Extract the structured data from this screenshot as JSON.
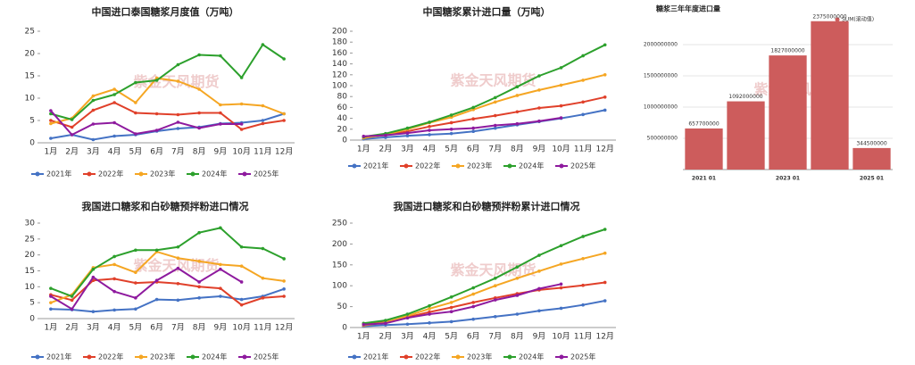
{
  "chart_data": [
    {
      "type": "line",
      "title": "中国进口泰国糖浆月度值（万吨）",
      "watermark": "紫金天风期货",
      "categories": [
        "1月",
        "2月",
        "3月",
        "4月",
        "5月",
        "6月",
        "7月",
        "8月",
        "9月",
        "10月",
        "11月",
        "12月"
      ],
      "ylim": [
        0,
        25
      ],
      "yticks": [
        0,
        5,
        10,
        15,
        20,
        25
      ],
      "grid": false,
      "series": [
        {
          "name": "2021年",
          "color": "#4472c4",
          "values": [
            1.0,
            1.8,
            0.7,
            1.5,
            1.8,
            2.6,
            3.2,
            3.5,
            4.3,
            4.5,
            5.0,
            6.5
          ]
        },
        {
          "name": "2022年",
          "color": "#e0402a",
          "values": [
            5.0,
            3.5,
            7.3,
            9.0,
            6.7,
            6.5,
            6.3,
            6.7,
            6.7,
            3.0,
            4.3,
            5.0
          ]
        },
        {
          "name": "2023年",
          "color": "#f5a623",
          "values": [
            4.3,
            5.5,
            10.5,
            12.0,
            9.0,
            14.5,
            13.8,
            12.0,
            8.5,
            8.7,
            8.3,
            6.5
          ]
        },
        {
          "name": "2024年",
          "color": "#2ca02c",
          "values": [
            6.5,
            5.2,
            9.5,
            10.8,
            13.5,
            14.0,
            17.5,
            19.7,
            19.5,
            14.6,
            22.0,
            18.8
          ]
        },
        {
          "name": "2025年",
          "color": "#8e1a9e",
          "values": [
            7.2,
            1.8,
            4.2,
            4.5,
            2.0,
            2.8,
            4.6,
            3.3,
            4.2,
            4.2,
            null,
            null
          ]
        }
      ]
    },
    {
      "type": "line",
      "title": "中国糖浆累计进口量（万吨）",
      "watermark": "紫金天风期货",
      "categories": [
        "1月",
        "2月",
        "3月",
        "4月",
        "5月",
        "6月",
        "7月",
        "8月",
        "9月",
        "10月",
        "11月",
        "12月"
      ],
      "ylim": [
        0,
        200
      ],
      "yticks": [
        0,
        20,
        40,
        60,
        80,
        100,
        120,
        140,
        160,
        180,
        200
      ],
      "grid": false,
      "series": [
        {
          "name": "2021年",
          "color": "#4472c4",
          "values": [
            2,
            5,
            8,
            10,
            12,
            16,
            22,
            28,
            34,
            40,
            47,
            55
          ]
        },
        {
          "name": "2022年",
          "color": "#e0402a",
          "values": [
            5,
            9,
            16,
            25,
            32,
            39,
            45,
            52,
            59,
            63,
            70,
            79
          ]
        },
        {
          "name": "2023年",
          "color": "#f5a623",
          "values": [
            4,
            10,
            20,
            32,
            42,
            56,
            70,
            82,
            92,
            101,
            110,
            120
          ]
        },
        {
          "name": "2024年",
          "color": "#2ca02c",
          "values": [
            6,
            12,
            22,
            33,
            46,
            60,
            78,
            98,
            118,
            133,
            155,
            175
          ]
        },
        {
          "name": "2025年",
          "color": "#8e1a9e",
          "values": [
            7,
            9,
            13,
            18,
            20,
            22,
            27,
            30,
            35,
            41,
            null,
            null
          ]
        }
      ]
    },
    {
      "type": "bar",
      "title": "糖浆三年年度进口量",
      "legend": "SUM(滚动值)",
      "watermark": "紫金天风期货",
      "color": "#cd5c5c",
      "categories": [
        "2021 01",
        null,
        "2023 01",
        null,
        "2025 01"
      ],
      "values": [
        657700000,
        1092000000,
        1827000000,
        2375000000,
        344500000
      ],
      "ylim": [
        0,
        2400000000
      ],
      "yticks": [
        500000000,
        1000000000,
        1500000000,
        2000000000
      ],
      "grid": true
    },
    {
      "type": "line",
      "title": "我国进口糖浆和白砂糖预拌粉进口情况",
      "watermark": "紫金天风期货",
      "categories": [
        "1月",
        "2月",
        "3月",
        "4月",
        "5月",
        "6月",
        "7月",
        "8月",
        "9月",
        "10月",
        "11月",
        "12月"
      ],
      "ylim": [
        0,
        30
      ],
      "yticks": [
        0,
        5,
        10,
        15,
        20,
        25,
        30
      ],
      "grid": false,
      "series": [
        {
          "name": "2021年",
          "color": "#4472c4",
          "values": [
            3,
            2.8,
            2.2,
            2.7,
            3,
            6,
            5.8,
            6.5,
            7,
            6,
            7,
            9.3
          ]
        },
        {
          "name": "2022年",
          "color": "#e0402a",
          "values": [
            7.5,
            5.8,
            12,
            12.5,
            11.2,
            11.5,
            11,
            10,
            9.5,
            4.3,
            6.5,
            7
          ]
        },
        {
          "name": "2023年",
          "color": "#f5a623",
          "values": [
            5,
            7.5,
            16,
            17,
            14.5,
            21,
            19,
            18,
            17,
            16.5,
            12.7,
            11.8
          ]
        },
        {
          "name": "2024年",
          "color": "#2ca02c",
          "values": [
            9.5,
            7,
            15.5,
            19.5,
            21.5,
            21.5,
            22.5,
            27,
            28.5,
            22.5,
            22,
            18.8
          ]
        },
        {
          "name": "2025年",
          "color": "#8e1a9e",
          "values": [
            7,
            3,
            13,
            8.5,
            6.5,
            12,
            15.8,
            11.5,
            15.5,
            11.5,
            null,
            null
          ]
        }
      ]
    },
    {
      "type": "line",
      "title": "我国进口糖浆和白砂糖预拌粉累计进口情况",
      "watermark": "紫金天风期货",
      "categories": [
        "1月",
        "2月",
        "3月",
        "4月",
        "5月",
        "6月",
        "7月",
        "8月",
        "9月",
        "10月",
        "11月",
        "12月"
      ],
      "ylim": [
        0,
        250
      ],
      "yticks": [
        0,
        50,
        100,
        150,
        200,
        250
      ],
      "grid": false,
      "series": [
        {
          "name": "2021年",
          "color": "#4472c4",
          "values": [
            3,
            6,
            8,
            11,
            14,
            20,
            26,
            32,
            40,
            46,
            54,
            64
          ]
        },
        {
          "name": "2022年",
          "color": "#e0402a",
          "values": [
            7,
            13,
            25,
            37,
            48,
            60,
            71,
            81,
            90,
            95,
            101,
            108
          ]
        },
        {
          "name": "2023年",
          "color": "#f5a623",
          "values": [
            5,
            12,
            28,
            45,
            60,
            80,
            100,
            118,
            135,
            152,
            165,
            178
          ]
        },
        {
          "name": "2024年",
          "color": "#2ca02c",
          "values": [
            10,
            17,
            32,
            52,
            73,
            95,
            118,
            145,
            173,
            196,
            218,
            235
          ]
        },
        {
          "name": "2025年",
          "color": "#8e1a9e",
          "values": [
            7,
            10,
            23,
            32,
            38,
            50,
            66,
            77,
            93,
            104,
            null,
            null
          ]
        }
      ]
    }
  ]
}
